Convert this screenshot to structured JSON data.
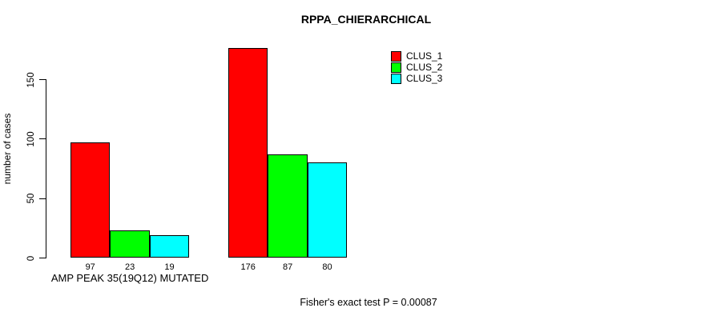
{
  "title": "RPPA_CHIERARCHICAL",
  "annotation": "Fisher's exact test P = 0.00087",
  "chart_data": {
    "type": "bar",
    "title": "RPPA_CHIERARCHICAL",
    "xlabel": "",
    "ylabel": "number of cases",
    "groups": [
      "AMP PEAK 35(19Q12) MUTATED",
      ""
    ],
    "series": [
      {
        "name": "CLUS_1",
        "color": "#ff0000",
        "values": [
          97,
          176
        ]
      },
      {
        "name": "CLUS_2",
        "color": "#00ff00",
        "values": [
          23,
          87
        ]
      },
      {
        "name": "CLUS_3",
        "color": "#00ffff",
        "values": [
          19,
          80
        ]
      }
    ],
    "bar_value_labels": [
      [
        "97",
        "23",
        "19"
      ],
      [
        "176",
        "87",
        "80"
      ]
    ],
    "yticks": [
      0,
      50,
      100,
      150
    ],
    "ylim": [
      0,
      176
    ],
    "grid": false,
    "legend_position": "top-right",
    "footnote": "Fisher's exact test P = 0.00087"
  }
}
